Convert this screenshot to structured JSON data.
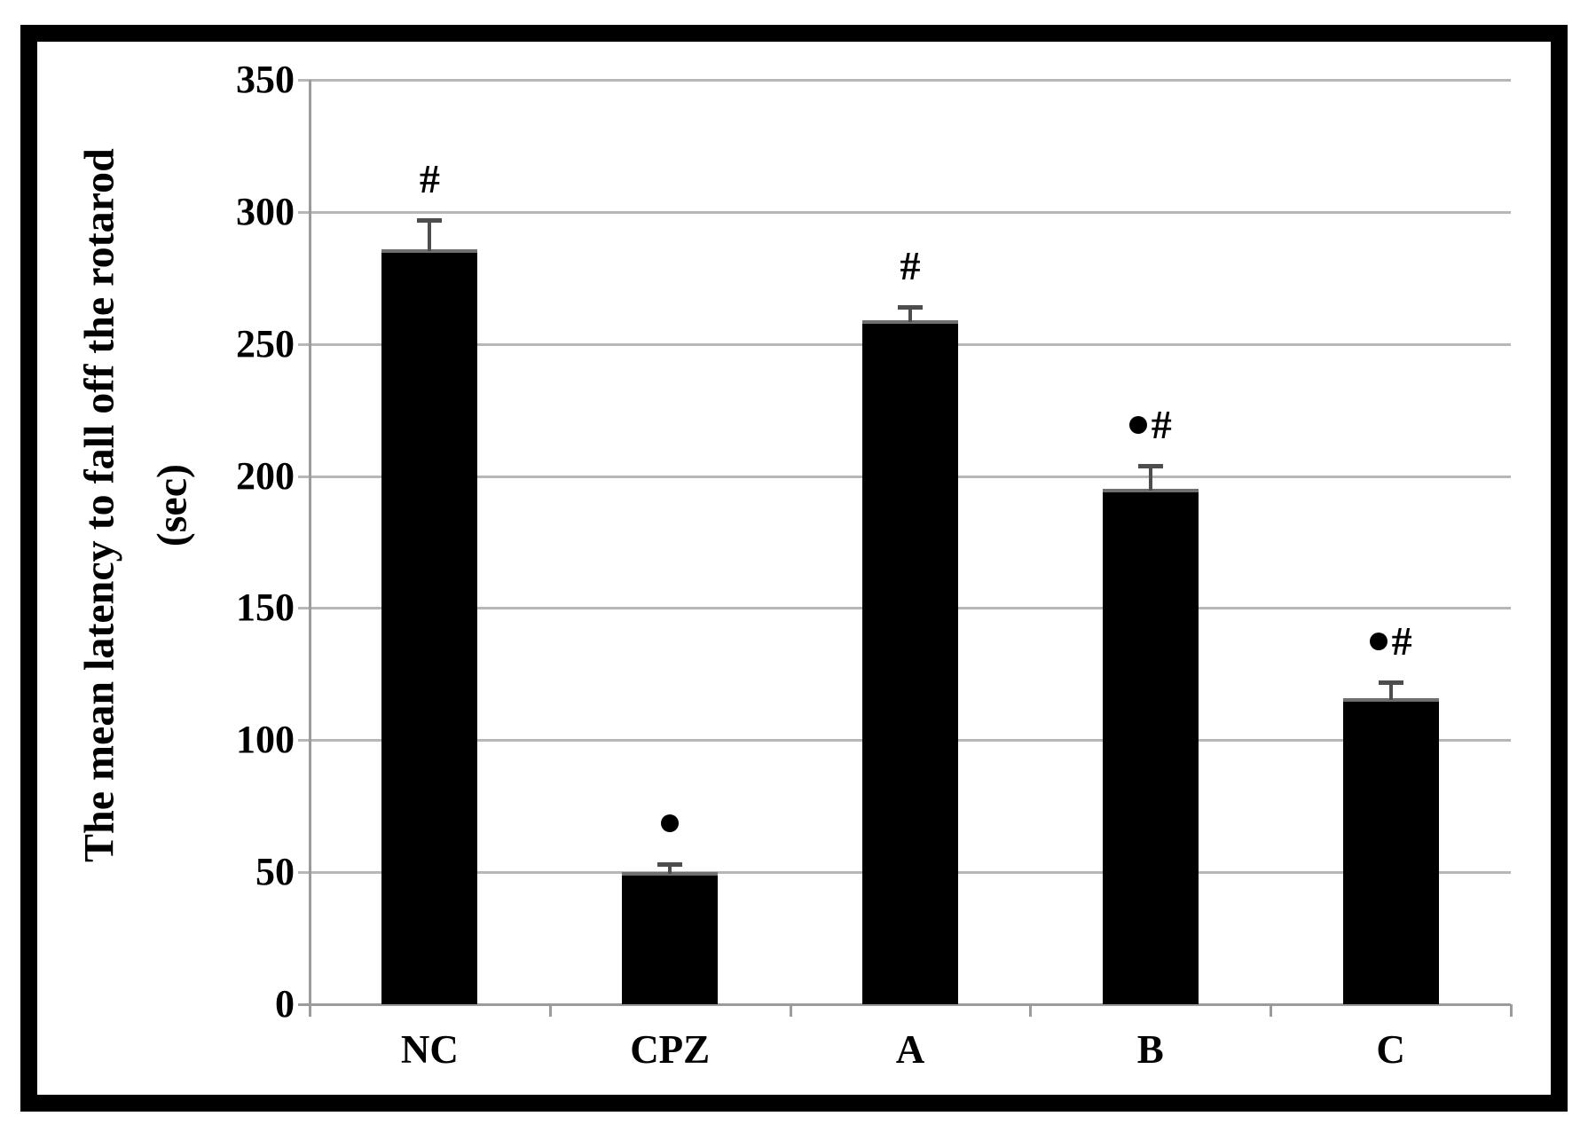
{
  "figure": {
    "background": "#ffffff",
    "border_color": "#000000"
  },
  "chart_data": {
    "type": "bar",
    "title": "",
    "ylabel": "The mean latency to fall off the rotarod",
    "ylabel_unit": "(sec)",
    "xlabel": "",
    "categories": [
      "NC",
      "CPZ",
      "A",
      "B",
      "C"
    ],
    "series": [
      {
        "name": "mean latency to fall (sec)",
        "values": [
          286,
          50,
          259,
          195,
          116
        ]
      }
    ],
    "error_bars": [
      11,
      3,
      5,
      9,
      6
    ],
    "annotations": [
      "#",
      "●",
      "#",
      "●#",
      "●#"
    ],
    "ylim": [
      0,
      350
    ],
    "yticks": [
      0,
      50,
      100,
      150,
      200,
      250,
      300,
      350
    ],
    "grid": true,
    "legend_position": "none",
    "bar_color": "#000000",
    "gridline_color": "#b7b7b7",
    "axis_color": "#9b9b9b",
    "error_bar_color": "#4d4d4d",
    "text_color": "#000000"
  }
}
